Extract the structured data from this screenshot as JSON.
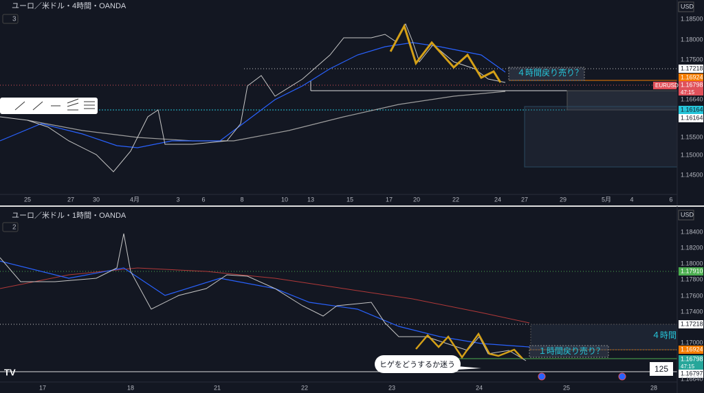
{
  "top": {
    "header": "ユーロ／米ドル・4時間・OANDA",
    "badge": "3",
    "currency": "USD",
    "prices": [
      "1.18500",
      "1.18000",
      "1.17500",
      "1.17218",
      "1.16924",
      "1.16798",
      "1.16640",
      "1.16164",
      "1.16164",
      "1.15500",
      "1.15000",
      "1.14500"
    ],
    "symbol": "EURUSD",
    "countdown": "47:15",
    "note": "４時間戻り売り？",
    "dates": [
      "25",
      "27",
      "30",
      "4月",
      "3",
      "6",
      "8",
      "10",
      "13",
      "15",
      "17",
      "20",
      "22",
      "24",
      "27",
      "29",
      "5月",
      "4",
      "6"
    ]
  },
  "bottom": {
    "header": "ユーロ／米ドル・1時間・OANDA",
    "badge": "2",
    "currency": "USD",
    "prices": [
      "1.18400",
      "1.18200",
      "1.18000",
      "1.17910",
      "1.17800",
      "1.17600",
      "1.17400",
      "1.17218",
      "1.17000",
      "1.16924",
      "1.16798",
      "1.16797",
      "1.16640"
    ],
    "countdown": "47:15",
    "note_4h": "４時間",
    "note_1h": "１時間戻り売り？",
    "callout": "ヒゲをどうするか迷う",
    "counter": "125",
    "dates": [
      "17",
      "18",
      "21",
      "22",
      "23",
      "24",
      "25",
      "28"
    ]
  }
}
